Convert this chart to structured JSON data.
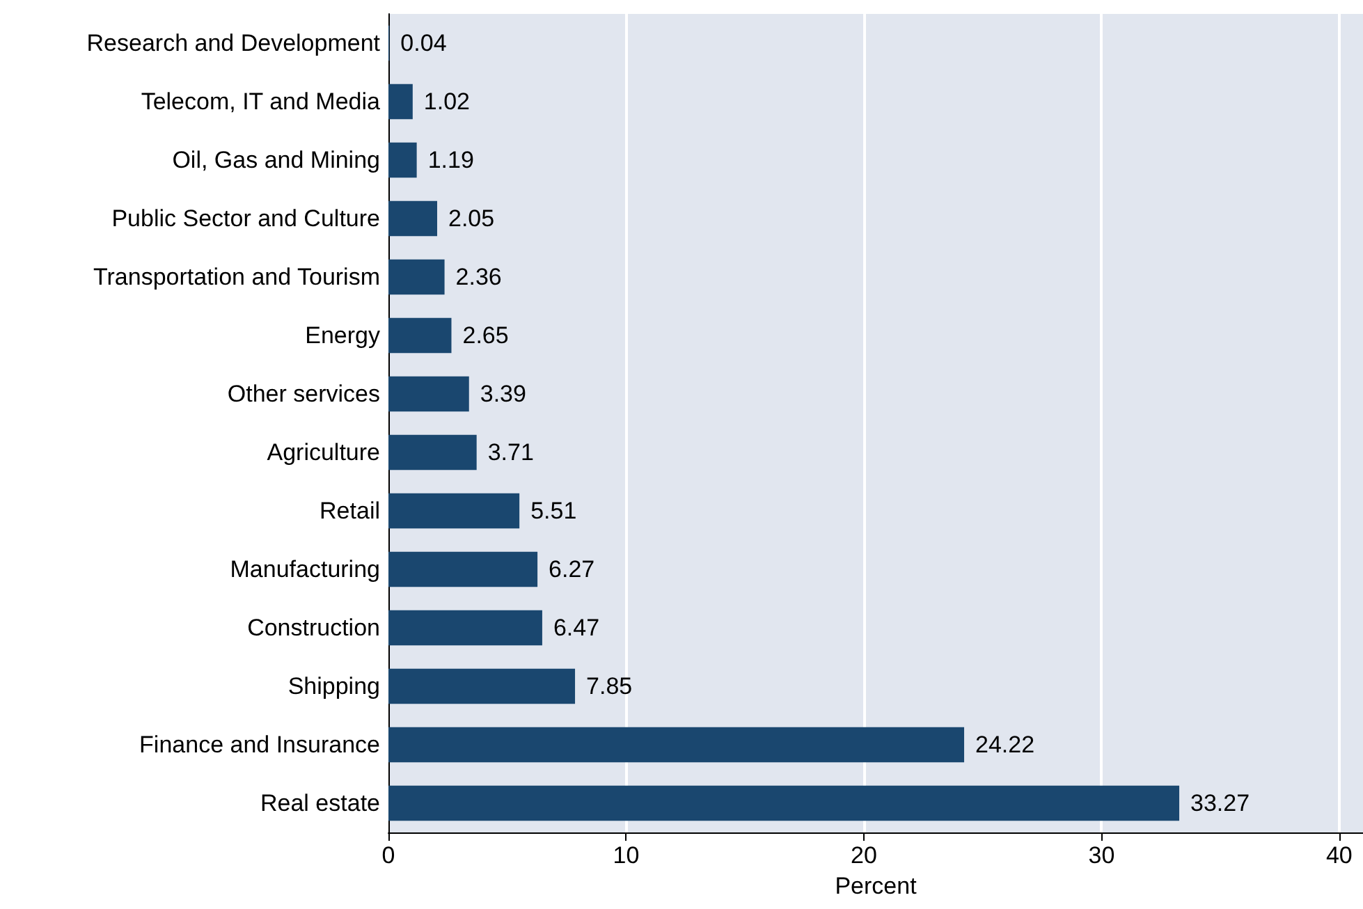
{
  "chart_data": {
    "type": "bar",
    "orientation": "horizontal",
    "xlabel": "Percent",
    "categories": [
      "Research and Development",
      "Telecom, IT and Media",
      "Oil, Gas and Mining",
      "Public Sector and Culture",
      "Transportation and Tourism",
      "Energy",
      "Other services",
      "Agriculture",
      "Retail",
      "Manufacturing",
      "Construction",
      "Shipping",
      "Finance and Insurance",
      "Real estate"
    ],
    "values": [
      0.04,
      1.02,
      1.19,
      2.05,
      2.36,
      2.65,
      3.39,
      3.71,
      5.51,
      6.27,
      6.47,
      7.85,
      24.22,
      33.27
    ],
    "color": "#1a476f",
    "xlim": [
      0,
      41
    ],
    "xticks": [
      0,
      10,
      20,
      30,
      40
    ],
    "grid": "x",
    "data_labels": true
  }
}
